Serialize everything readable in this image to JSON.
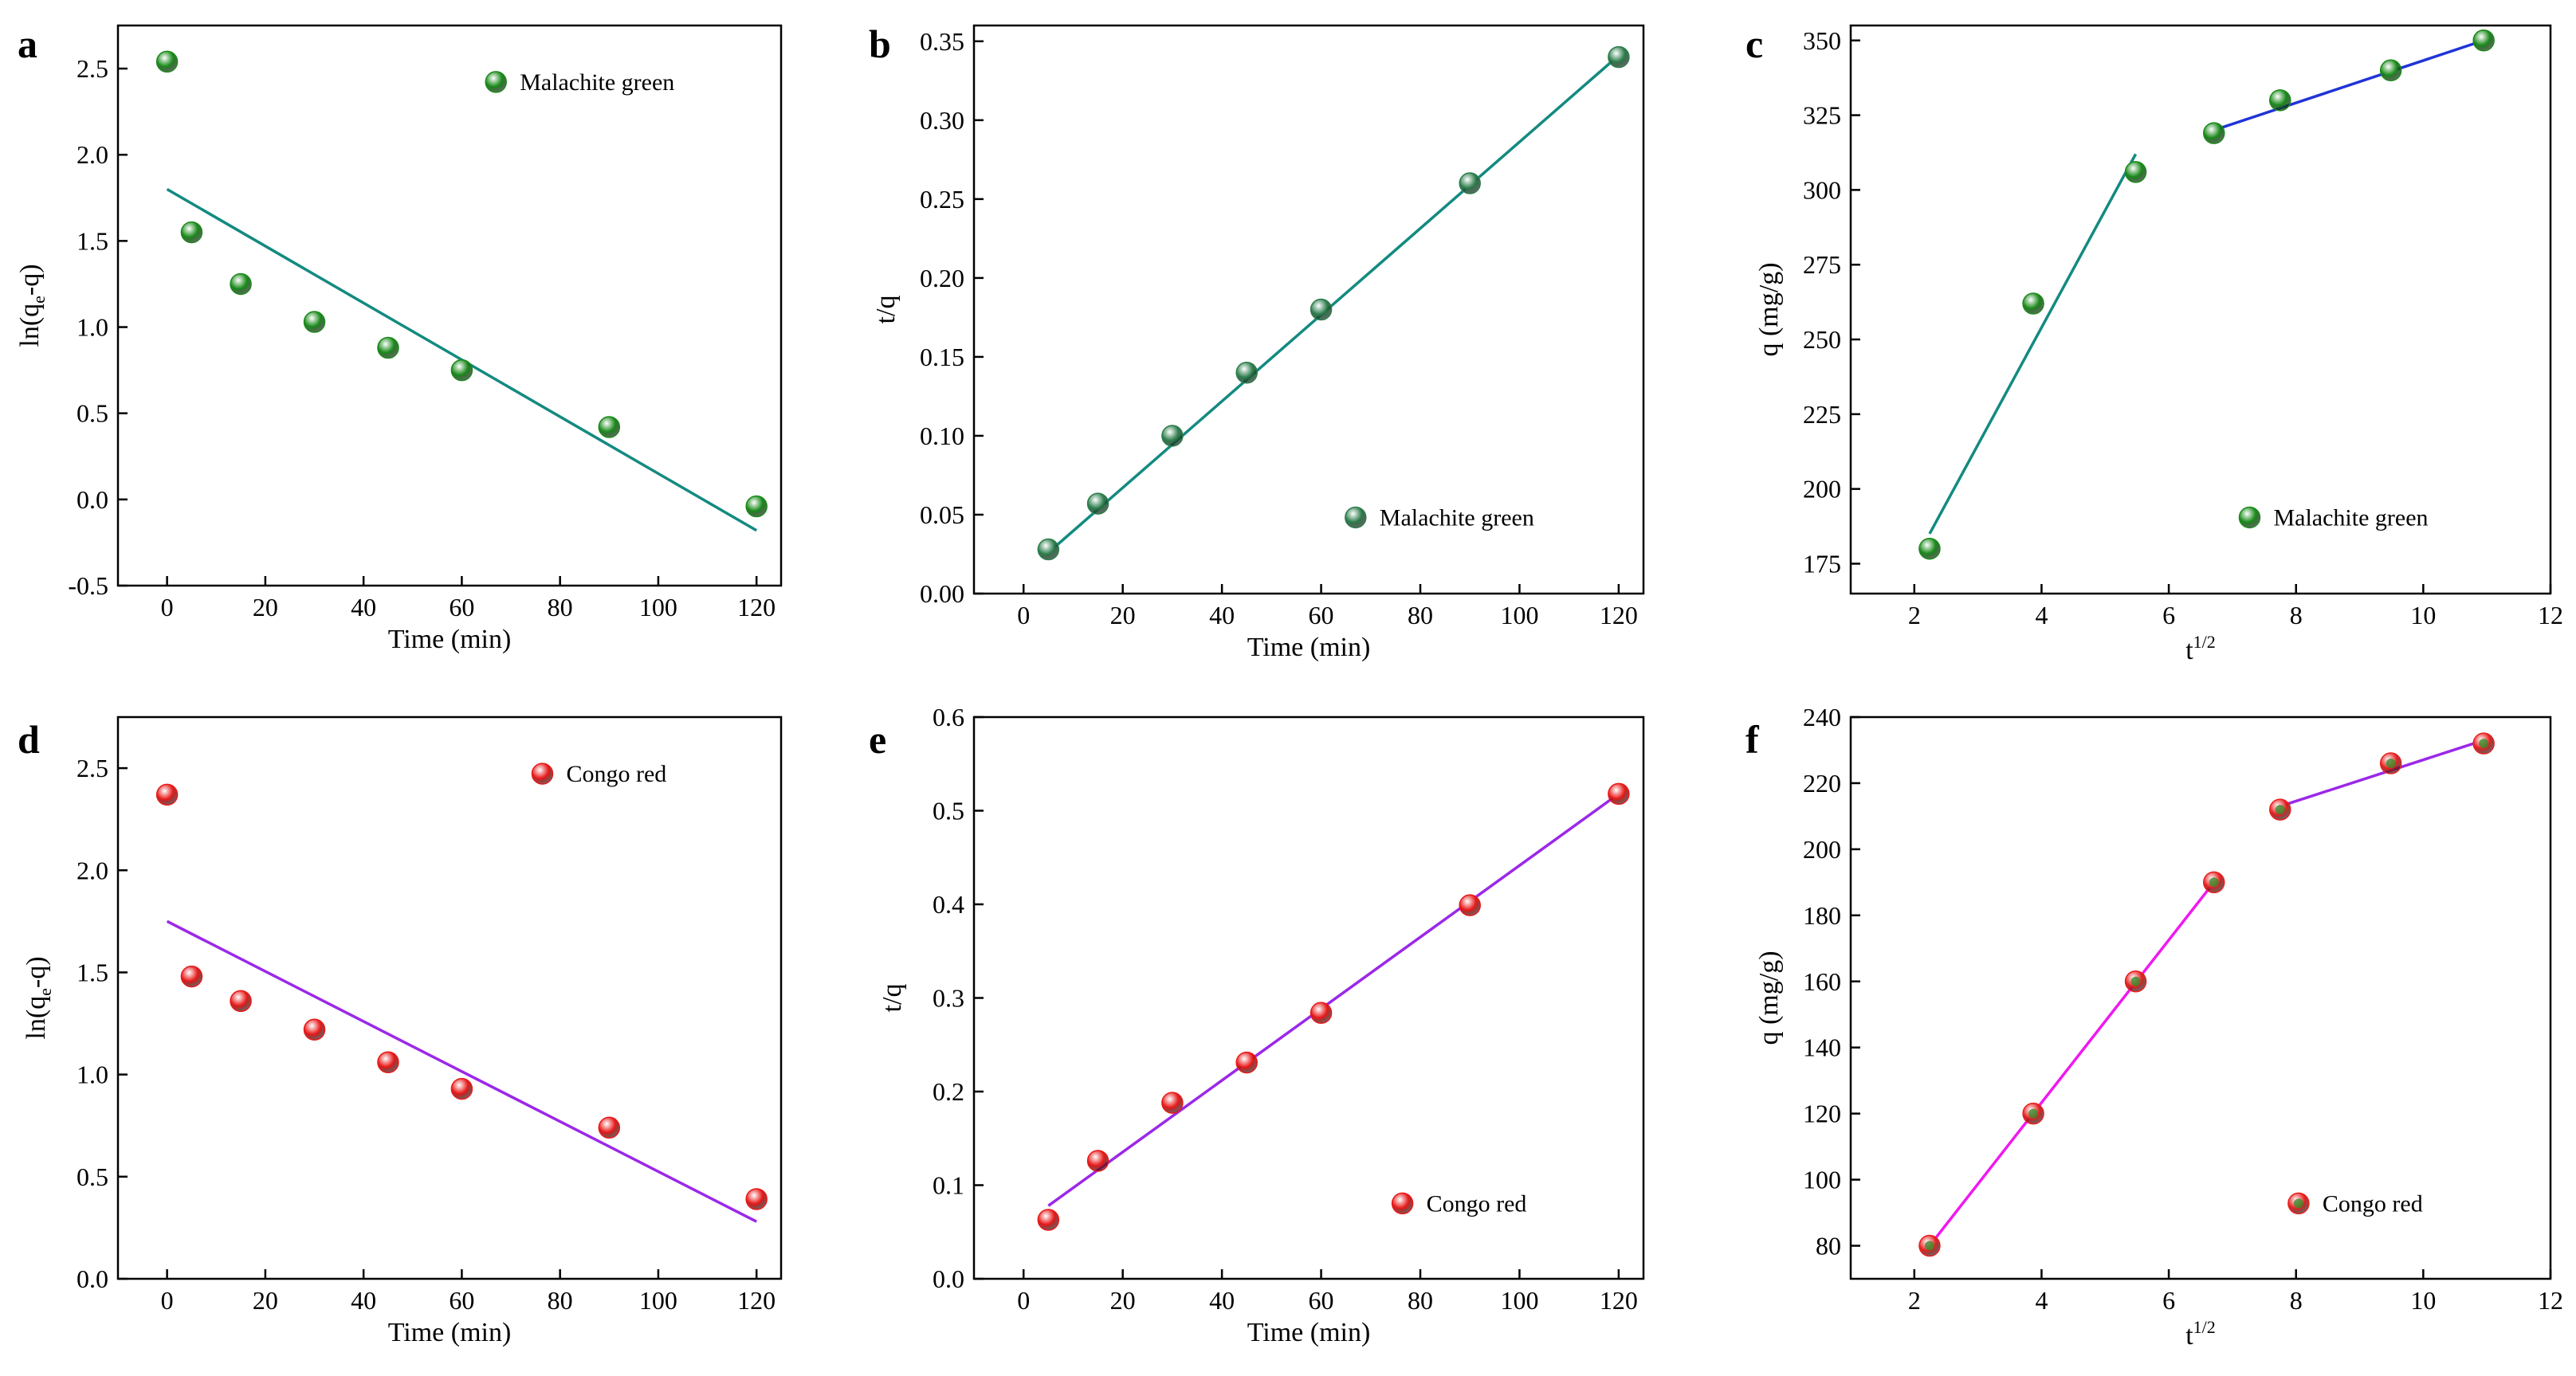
{
  "chart_data": [
    {
      "panel": "a",
      "type": "scatter",
      "xlabel": "Time (min)",
      "ylabel": "ln(qe-q)",
      "ylabel_main": "ln(q",
      "ylabel_sub": "e",
      "ylabel_tail": "-q)",
      "xlim": [
        -10,
        125
      ],
      "ylim": [
        -0.5,
        2.75
      ],
      "xticks": [
        0,
        20,
        40,
        60,
        80,
        100,
        120
      ],
      "yticks": [
        -0.5,
        0.0,
        0.5,
        1.0,
        1.5,
        2.0,
        2.5
      ],
      "ytick_labels": [
        "-0.5",
        "0.0",
        "0.5",
        "1.0",
        "1.5",
        "2.0",
        "2.5"
      ],
      "legend": "Malachite green",
      "legend_position": "top-right",
      "marker_color": "#1a8a1a",
      "line_color": "#138a80",
      "series": [
        {
          "name": "Malachite green",
          "x": [
            0,
            5,
            15,
            30,
            45,
            60,
            90,
            120
          ],
          "y": [
            2.54,
            1.55,
            1.25,
            1.03,
            0.88,
            0.75,
            0.42,
            -0.04
          ]
        }
      ],
      "fits": [
        {
          "x": [
            0,
            120
          ],
          "y": [
            1.8,
            -0.18
          ]
        }
      ]
    },
    {
      "panel": "b",
      "type": "scatter",
      "xlabel": "Time (min)",
      "ylabel": "t/q",
      "xlim": [
        -10,
        125
      ],
      "ylim": [
        0.0,
        0.36
      ],
      "xticks": [
        0,
        20,
        40,
        60,
        80,
        100,
        120
      ],
      "yticks": [
        0.0,
        0.05,
        0.1,
        0.15,
        0.2,
        0.25,
        0.3,
        0.35
      ],
      "ytick_labels": [
        "0.00",
        "0.05",
        "0.10",
        "0.15",
        "0.20",
        "0.25",
        "0.30",
        "0.35"
      ],
      "legend": "Malachite green",
      "legend_position": "bottom-right",
      "marker_color": "#2c7d4c",
      "line_color": "#138a80",
      "series": [
        {
          "name": "Malachite green",
          "x": [
            5,
            15,
            30,
            45,
            60,
            90,
            120
          ],
          "y": [
            0.028,
            0.057,
            0.1,
            0.14,
            0.18,
            0.26,
            0.34
          ]
        }
      ],
      "fits": [
        {
          "x": [
            5,
            120
          ],
          "y": [
            0.026,
            0.341
          ]
        }
      ]
    },
    {
      "panel": "c",
      "type": "scatter",
      "xlabel": "t1/2",
      "xlabel_main": "t",
      "xlabel_sup": "1/2",
      "ylabel": "q (mg/g)",
      "xlim": [
        1,
        12
      ],
      "ylim": [
        165,
        355
      ],
      "xticks": [
        2,
        4,
        6,
        8,
        10,
        12
      ],
      "yticks": [
        175,
        200,
        225,
        250,
        275,
        300,
        325,
        350
      ],
      "ytick_labels": [
        "175",
        "200",
        "225",
        "250",
        "275",
        "300",
        "325",
        "350"
      ],
      "legend": "Malachite green",
      "legend_position": "bottom-right",
      "marker_color": "#1a8a1a",
      "series": [
        {
          "name": "Malachite green",
          "x": [
            2.24,
            3.87,
            5.48,
            6.71,
            7.75,
            9.49,
            10.95
          ],
          "y": [
            180,
            262,
            306,
            319,
            330,
            340,
            350
          ]
        }
      ],
      "fits": [
        {
          "x": [
            2.24,
            5.48
          ],
          "y": [
            185,
            312
          ],
          "color": "#138a80"
        },
        {
          "x": [
            6.71,
            10.95
          ],
          "y": [
            320,
            350
          ],
          "color": "#2034d8"
        }
      ]
    },
    {
      "panel": "d",
      "type": "scatter",
      "xlabel": "Time (min)",
      "ylabel": "ln(qe-q)",
      "ylabel_main": "ln(q",
      "ylabel_sub": "e",
      "ylabel_tail": "-q)",
      "xlim": [
        -10,
        125
      ],
      "ylim": [
        0.0,
        2.75
      ],
      "xticks": [
        0,
        20,
        40,
        60,
        80,
        100,
        120
      ],
      "yticks": [
        0.0,
        0.5,
        1.0,
        1.5,
        2.0,
        2.5
      ],
      "ytick_labels": [
        "0.0",
        "0.5",
        "1.0",
        "1.5",
        "2.0",
        "2.5"
      ],
      "legend": "Congo red",
      "legend_position": "top-right",
      "marker_color": "#e81818",
      "line_color": "#9b28e8",
      "series": [
        {
          "name": "Congo red",
          "x": [
            0,
            5,
            15,
            30,
            45,
            60,
            90,
            120
          ],
          "y": [
            2.37,
            1.48,
            1.36,
            1.22,
            1.06,
            0.93,
            0.74,
            0.39
          ]
        }
      ],
      "fits": [
        {
          "x": [
            0,
            120
          ],
          "y": [
            1.75,
            0.28
          ]
        }
      ]
    },
    {
      "panel": "e",
      "type": "scatter",
      "xlabel": "Time (min)",
      "ylabel": "t/q",
      "xlim": [
        -10,
        125
      ],
      "ylim": [
        0.0,
        0.6
      ],
      "xticks": [
        0,
        20,
        40,
        60,
        80,
        100,
        120
      ],
      "yticks": [
        0.0,
        0.1,
        0.2,
        0.3,
        0.4,
        0.5,
        0.6
      ],
      "ytick_labels": [
        "0.0",
        "0.1",
        "0.2",
        "0.3",
        "0.4",
        "0.5",
        "0.6"
      ],
      "legend": "Congo red",
      "legend_position": "bottom-right",
      "marker_color": "#e81818",
      "line_color": "#9b28e8",
      "series": [
        {
          "name": "Congo red",
          "x": [
            5,
            15,
            30,
            45,
            60,
            90,
            120
          ],
          "y": [
            0.063,
            0.126,
            0.188,
            0.231,
            0.284,
            0.399,
            0.518
          ]
        }
      ],
      "fits": [
        {
          "x": [
            5,
            120
          ],
          "y": [
            0.078,
            0.518
          ]
        }
      ]
    },
    {
      "panel": "f",
      "type": "scatter",
      "xlabel": "t1/2",
      "xlabel_main": "t",
      "xlabel_sup": "1/2",
      "ylabel": "q (mg/g)",
      "xlim": [
        1,
        12
      ],
      "ylim": [
        70,
        240
      ],
      "xticks": [
        2,
        4,
        6,
        8,
        10,
        12
      ],
      "yticks": [
        80,
        100,
        120,
        140,
        160,
        180,
        200,
        220,
        240
      ],
      "ytick_labels": [
        "80",
        "100",
        "120",
        "140",
        "160",
        "180",
        "200",
        "220",
        "240"
      ],
      "legend": "Congo red",
      "legend_position": "bottom-right",
      "marker_color": "#e82020",
      "marker_inner_color": "#3a8a2a",
      "series": [
        {
          "name": "Congo red",
          "x": [
            2.24,
            3.87,
            5.48,
            6.71,
            7.75,
            9.49,
            10.95
          ],
          "y": [
            80,
            120,
            160,
            190,
            212,
            226,
            232
          ]
        }
      ],
      "fits": [
        {
          "x": [
            2.24,
            6.71
          ],
          "y": [
            80,
            190
          ],
          "color": "#f018f0"
        },
        {
          "x": [
            7.75,
            10.95
          ],
          "y": [
            213,
            233
          ],
          "color": "#9b28e8"
        }
      ]
    }
  ]
}
